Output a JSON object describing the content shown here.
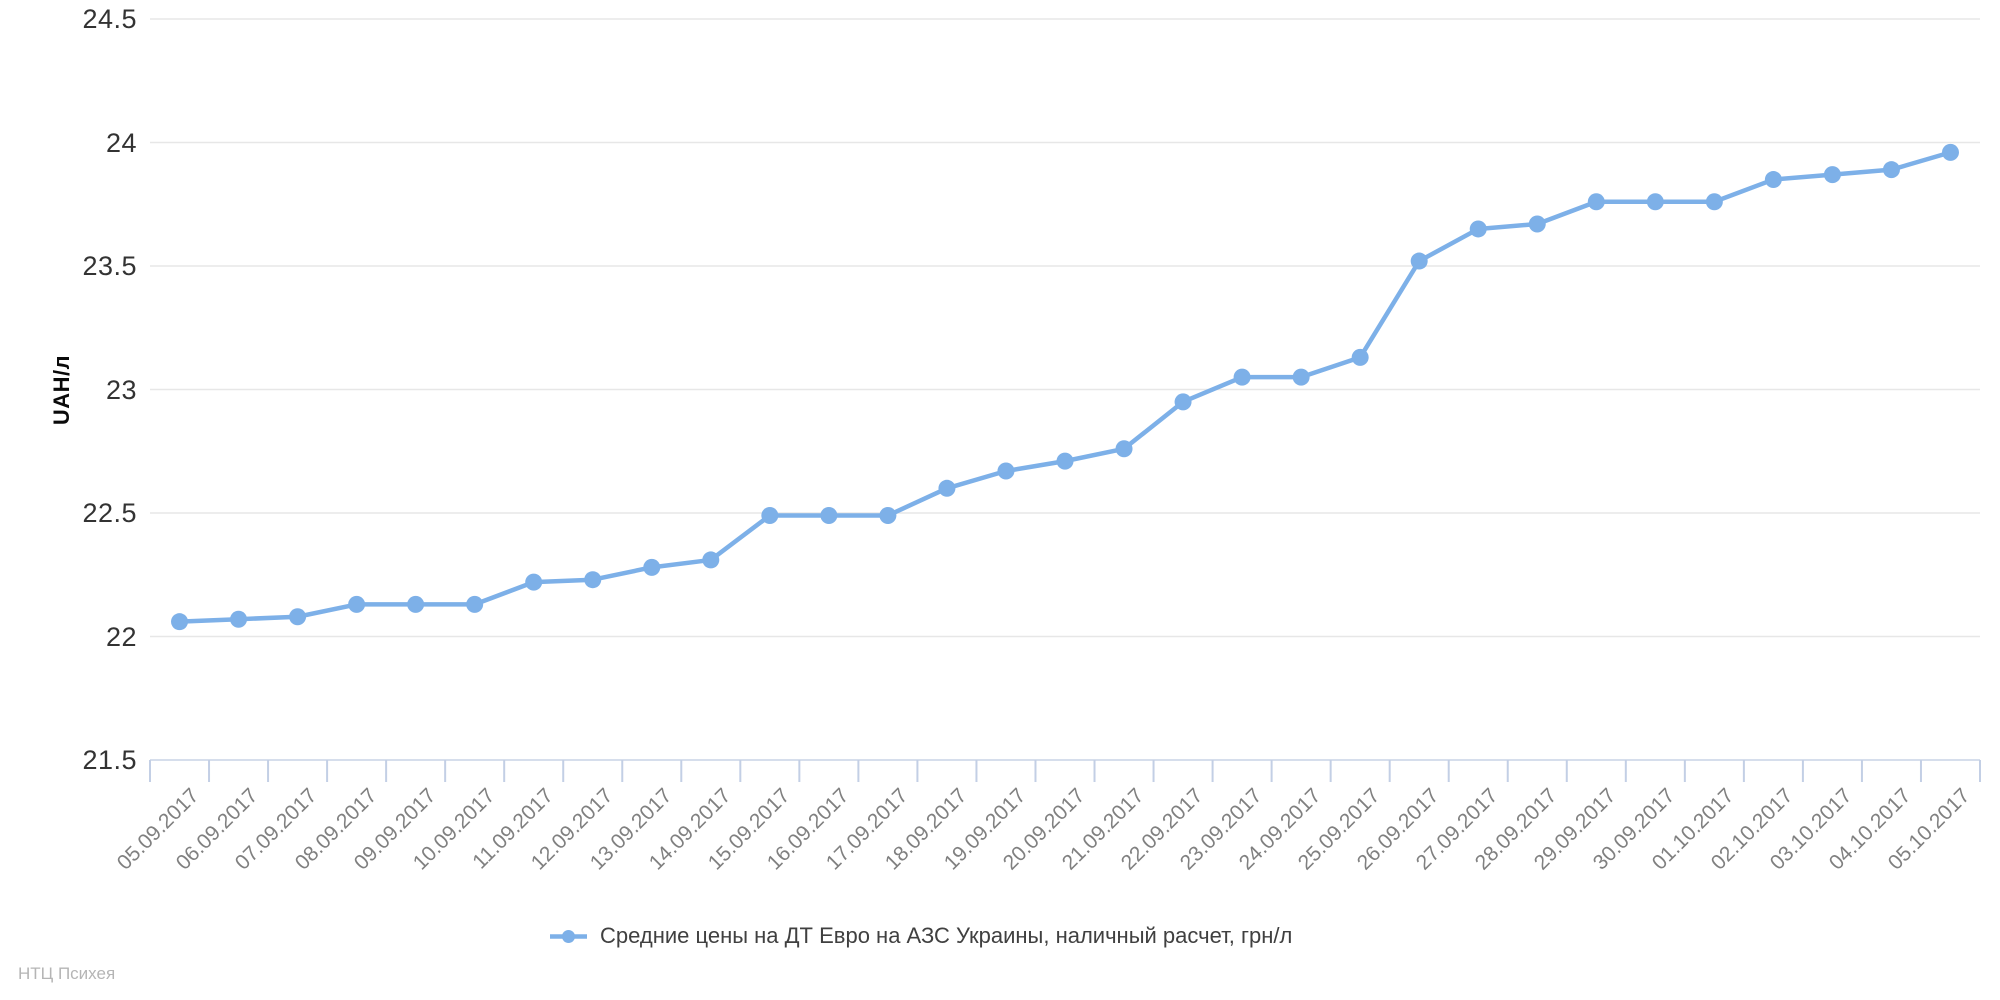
{
  "chart_data": {
    "type": "line",
    "title": "",
    "xlabel": "",
    "ylabel": "UAH/л",
    "categories": [
      "05.09.2017",
      "06.09.2017",
      "07.09.2017",
      "08.09.2017",
      "09.09.2017",
      "10.09.2017",
      "11.09.2017",
      "12.09.2017",
      "13.09.2017",
      "14.09.2017",
      "15.09.2017",
      "16.09.2017",
      "17.09.2017",
      "18.09.2017",
      "19.09.2017",
      "20.09.2017",
      "21.09.2017",
      "22.09.2017",
      "23.09.2017",
      "24.09.2017",
      "25.09.2017",
      "26.09.2017",
      "27.09.2017",
      "28.09.2017",
      "29.09.2017",
      "30.09.2017",
      "01.10.2017",
      "02.10.2017",
      "03.10.2017",
      "04.10.2017",
      "05.10.2017"
    ],
    "series": [
      {
        "name": "Средние цены на ДТ Евро на АЗС Украины, наличный расчет, грн/л",
        "values": [
          22.06,
          22.07,
          22.08,
          22.13,
          22.13,
          22.13,
          22.22,
          22.23,
          22.28,
          22.31,
          22.49,
          22.49,
          22.49,
          22.6,
          22.67,
          22.71,
          22.76,
          22.95,
          23.05,
          23.05,
          23.13,
          23.52,
          23.65,
          23.67,
          23.76,
          23.76,
          23.76,
          23.85,
          23.87,
          23.89,
          23.96
        ],
        "color": "#7db0e8"
      }
    ],
    "ylim": [
      21.5,
      24.5
    ],
    "yticks": [
      24.5,
      24.0,
      23.5,
      23.0,
      22.5,
      22.0,
      21.5
    ],
    "ytick_labels": [
      "24.5",
      "24",
      "23.5",
      "23",
      "22.5",
      "22",
      "21.5"
    ],
    "grid": true,
    "legend_position": "bottom",
    "marker": "circle"
  },
  "y_axis": {
    "title": "UAH/л"
  },
  "legend": {
    "label": "Средние цены на ДТ Евро на АЗС Украины, наличный расчет, грн/л",
    "marker_color": "#7db0e8"
  },
  "footer": {
    "credit": "НТЦ Психея"
  },
  "colors": {
    "line": "#7db0e8",
    "grid": "#e7e7e7",
    "axis_line": "#c9d4e6",
    "tick": "#c3cfe5",
    "y_label_text": "#333333",
    "x_label_text": "#808080",
    "legend_text": "#404040",
    "credit_text": "#b5b5b5"
  }
}
